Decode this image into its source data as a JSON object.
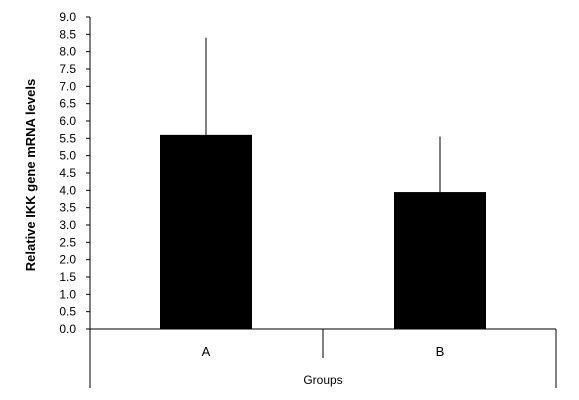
{
  "chart_data": {
    "type": "bar",
    "categories": [
      "A",
      "B"
    ],
    "values": [
      5.6,
      3.95
    ],
    "error_upper": [
      8.4,
      5.55
    ],
    "xlabel": "Groups",
    "ylabel": "Relative IKK gene mRNA levels",
    "ylim": [
      0,
      9
    ],
    "yticks": [
      "0.0",
      "0.5",
      "1.0",
      "1.5",
      "2.0",
      "2.5",
      "3.0",
      "3.5",
      "4.0",
      "4.5",
      "5.0",
      "5.5",
      "6.0",
      "6.5",
      "7.0",
      "7.5",
      "8.0",
      "8.5",
      "9.0"
    ],
    "grid": false,
    "bar_color": "#000000"
  }
}
